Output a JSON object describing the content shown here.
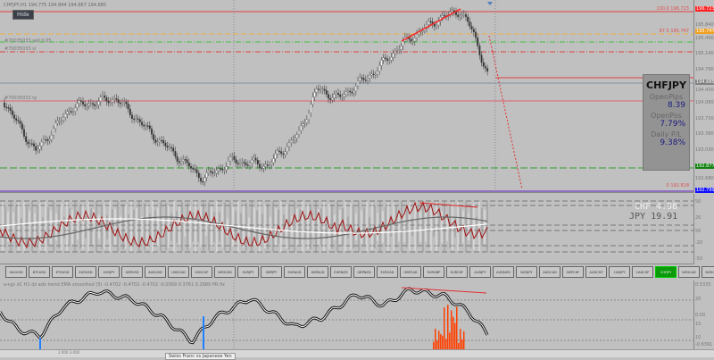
{
  "window": {
    "title": "CHFJPY,H1  194.775 194.844 194.667 194.685",
    "hide_label": "Hide"
  },
  "orders": {
    "sell": "#70035033 sell 0.05",
    "sl": "#70035033 sl",
    "tp": "#70035033 tp"
  },
  "fib": {
    "top": "100.0  196.723",
    "mid": "87.5  195.747",
    "bottom": "0  192.818"
  },
  "price_axis": [
    {
      "label": "196.723",
      "bg": "#ff2020"
    },
    {
      "label": "195.840"
    },
    {
      "label": "195.747",
      "bg": "#f0a020"
    },
    {
      "label": "195.490"
    },
    {
      "label": "195.140"
    },
    {
      "label": "194.790"
    },
    {
      "label": "194.685",
      "bg": "#808080"
    },
    {
      "label": "194.430"
    },
    {
      "label": "194.080"
    },
    {
      "label": "193.730"
    },
    {
      "label": "193.380"
    },
    {
      "label": "193.030"
    },
    {
      "label": "192.877",
      "bg": "#108010"
    },
    {
      "label": "192.680"
    },
    {
      "label": "192.799",
      "bg": "#1010ff"
    }
  ],
  "panel": {
    "symbol": "CHFJPY",
    "open_pips_label": "OpenPips",
    "open_pips": "8.39",
    "open_pos_label": "OpenPos",
    "open_pos": "7.79%",
    "daily_label": "Daily P/L",
    "daily": "9.38%"
  },
  "currency_strength": [
    {
      "label": "CHF  4.98",
      "color": "#f0f0f0"
    },
    {
      "label": "JPY 19.91",
      "color": "#555555"
    }
  ],
  "indicator1_axis": [
    "50",
    "20",
    "50",
    "-20",
    "-50"
  ],
  "symbols": [
    "XAUUSD",
    "BTCUSD",
    "ETHUSD",
    "EURUSD",
    "USDJPY",
    "GBPUSD",
    "AUDUSD",
    "USDCAD",
    "USDCHF",
    "NZDUSD",
    "EURJPY",
    "GBPJPY",
    "EURAUD",
    "GBPAUD",
    "EURNZD",
    "GBPNZD",
    "EURCAD",
    "GBPCAD",
    "EURGBP",
    "EURCHF",
    "AUDJPY",
    "AUDNZD",
    "NZDJPY",
    "AUDCAD",
    "GBPCHF",
    "AUDCHF",
    "CADJPY",
    "CADCHF",
    "CHFJPY",
    "NZDCAD",
    "NZDCHF"
  ],
  "active_symbol": "CHFJPY",
  "indicator2": {
    "label": "a+gs oC H1 dz adx trend EMA smoothed (5) -0.4702 -0.4702 -0.4702 -0.0369 0.3761 0.2689  PR fix",
    "axis": [
      "0.5335",
      "20",
      "0.00",
      "15",
      "10",
      "-0.6391"
    ]
  },
  "status": {
    "text": "2.000 3.000",
    "tooltip": "Swiss Franc vs Japanese Yen"
  },
  "colors": {
    "bull": "#ffffff",
    "bear": "#333333",
    "accent": "#ff3030",
    "active": "#0a9a0a"
  }
}
